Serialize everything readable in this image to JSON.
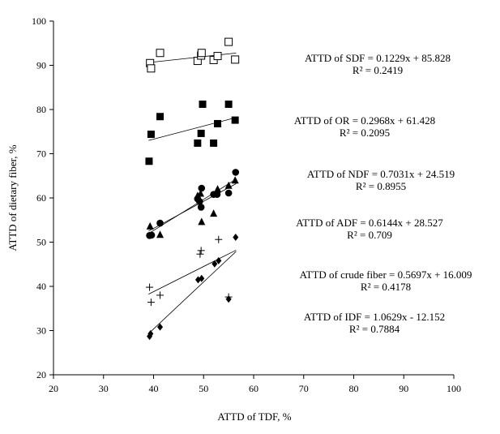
{
  "chart_data": {
    "type": "scatter",
    "title": "",
    "xlabel": "ATTD of TDF, %",
    "ylabel": "ATTD of dietary fiber, %",
    "xlim": [
      20,
      100
    ],
    "ylim": [
      20,
      100
    ],
    "xticks": [
      20,
      30,
      40,
      50,
      60,
      70,
      80,
      90,
      100
    ],
    "yticks": [
      20,
      30,
      40,
      50,
      60,
      70,
      80,
      90,
      100
    ],
    "series": [
      {
        "name": "SDF",
        "marker": "open-square",
        "x": [
          39.3,
          39.5,
          41.3,
          48.8,
          49.5,
          49.6,
          52.0,
          52.8,
          55.0,
          56.3
        ],
        "y": [
          90.5,
          89.3,
          92.8,
          91.0,
          92.2,
          92.8,
          91.2,
          92.1,
          95.3,
          91.3
        ],
        "fit": {
          "slope": 0.1229,
          "intercept": 85.828,
          "x_range": [
            39.0,
            56.5
          ]
        },
        "equation": "ATTD of SDF = 0.1229x + 85.828",
        "r2": "R² = 0.2419"
      },
      {
        "name": "OR",
        "marker": "filled-square",
        "x": [
          39.1,
          39.5,
          41.3,
          48.8,
          49.5,
          49.8,
          52.0,
          52.8,
          55.0,
          56.3
        ],
        "y": [
          68.3,
          74.4,
          78.4,
          72.4,
          74.6,
          81.2,
          72.4,
          76.8,
          81.2,
          77.6
        ],
        "fit": {
          "slope": 0.2968,
          "intercept": 61.428,
          "x_range": [
            39.0,
            56.5
          ]
        },
        "equation": "ATTD of OR = 0.2968x + 61.428",
        "r2": "R² = 0.2095"
      },
      {
        "name": "NDF",
        "marker": "filled-circle",
        "x": [
          39.2,
          39.6,
          41.3,
          48.8,
          49.2,
          49.5,
          49.6,
          52.0,
          52.7,
          55.0,
          56.4
        ],
        "y": [
          51.5,
          51.6,
          54.3,
          59.8,
          59.2,
          57.9,
          62.2,
          60.8,
          60.8,
          61.1,
          65.8
        ],
        "fit": {
          "slope": 0.7031,
          "intercept": 24.519,
          "x_range": [
            39.0,
            56.5
          ]
        },
        "equation": "ATTD of NDF = 0.7031x + 24.519",
        "r2": "R² = 0.8955"
      },
      {
        "name": "ADF",
        "marker": "filled-triangle",
        "x": [
          39.3,
          41.3,
          48.8,
          49.4,
          49.6,
          52.0,
          52.8,
          55.0,
          56.3
        ],
        "y": [
          53.6,
          51.7,
          60.5,
          61.0,
          54.6,
          56.5,
          62.0,
          62.8,
          64.0
        ],
        "fit": {
          "slope": 0.6144,
          "intercept": 28.527,
          "x_range": [
            39.0,
            56.5
          ]
        },
        "equation": "ATTD of ADF = 0.6144x + 28.527",
        "r2": "R² = 0.709"
      },
      {
        "name": "Crude fiber",
        "marker": "plus",
        "x": [
          39.2,
          39.5,
          41.3,
          49.3,
          49.5,
          53.0,
          55.0
        ],
        "y": [
          39.8,
          36.4,
          38.0,
          47.3,
          48.1,
          50.6,
          37.6
        ],
        "fit": {
          "slope": 0.5697,
          "intercept": 16.009,
          "x_range": [
            39.0,
            56.5
          ]
        },
        "equation": "ATTD of crude fiber = 0.5697x + 16.009",
        "r2": "R² = 0.4178"
      },
      {
        "name": "IDF",
        "marker": "filled-diamond",
        "x": [
          39.2,
          39.4,
          41.3,
          48.9,
          49.6,
          52.2,
          53.0,
          55.0,
          56.4
        ],
        "y": [
          28.7,
          29.3,
          30.8,
          41.5,
          41.8,
          45.1,
          45.8,
          37.1,
          51.1
        ],
        "fit": {
          "slope": 1.0629,
          "intercept": -12.152,
          "x_range": [
            39.0,
            56.5
          ]
        },
        "equation": "ATTD of IDF = 1.0629x - 12.152",
        "r2": "R² = 0.7884"
      }
    ]
  }
}
